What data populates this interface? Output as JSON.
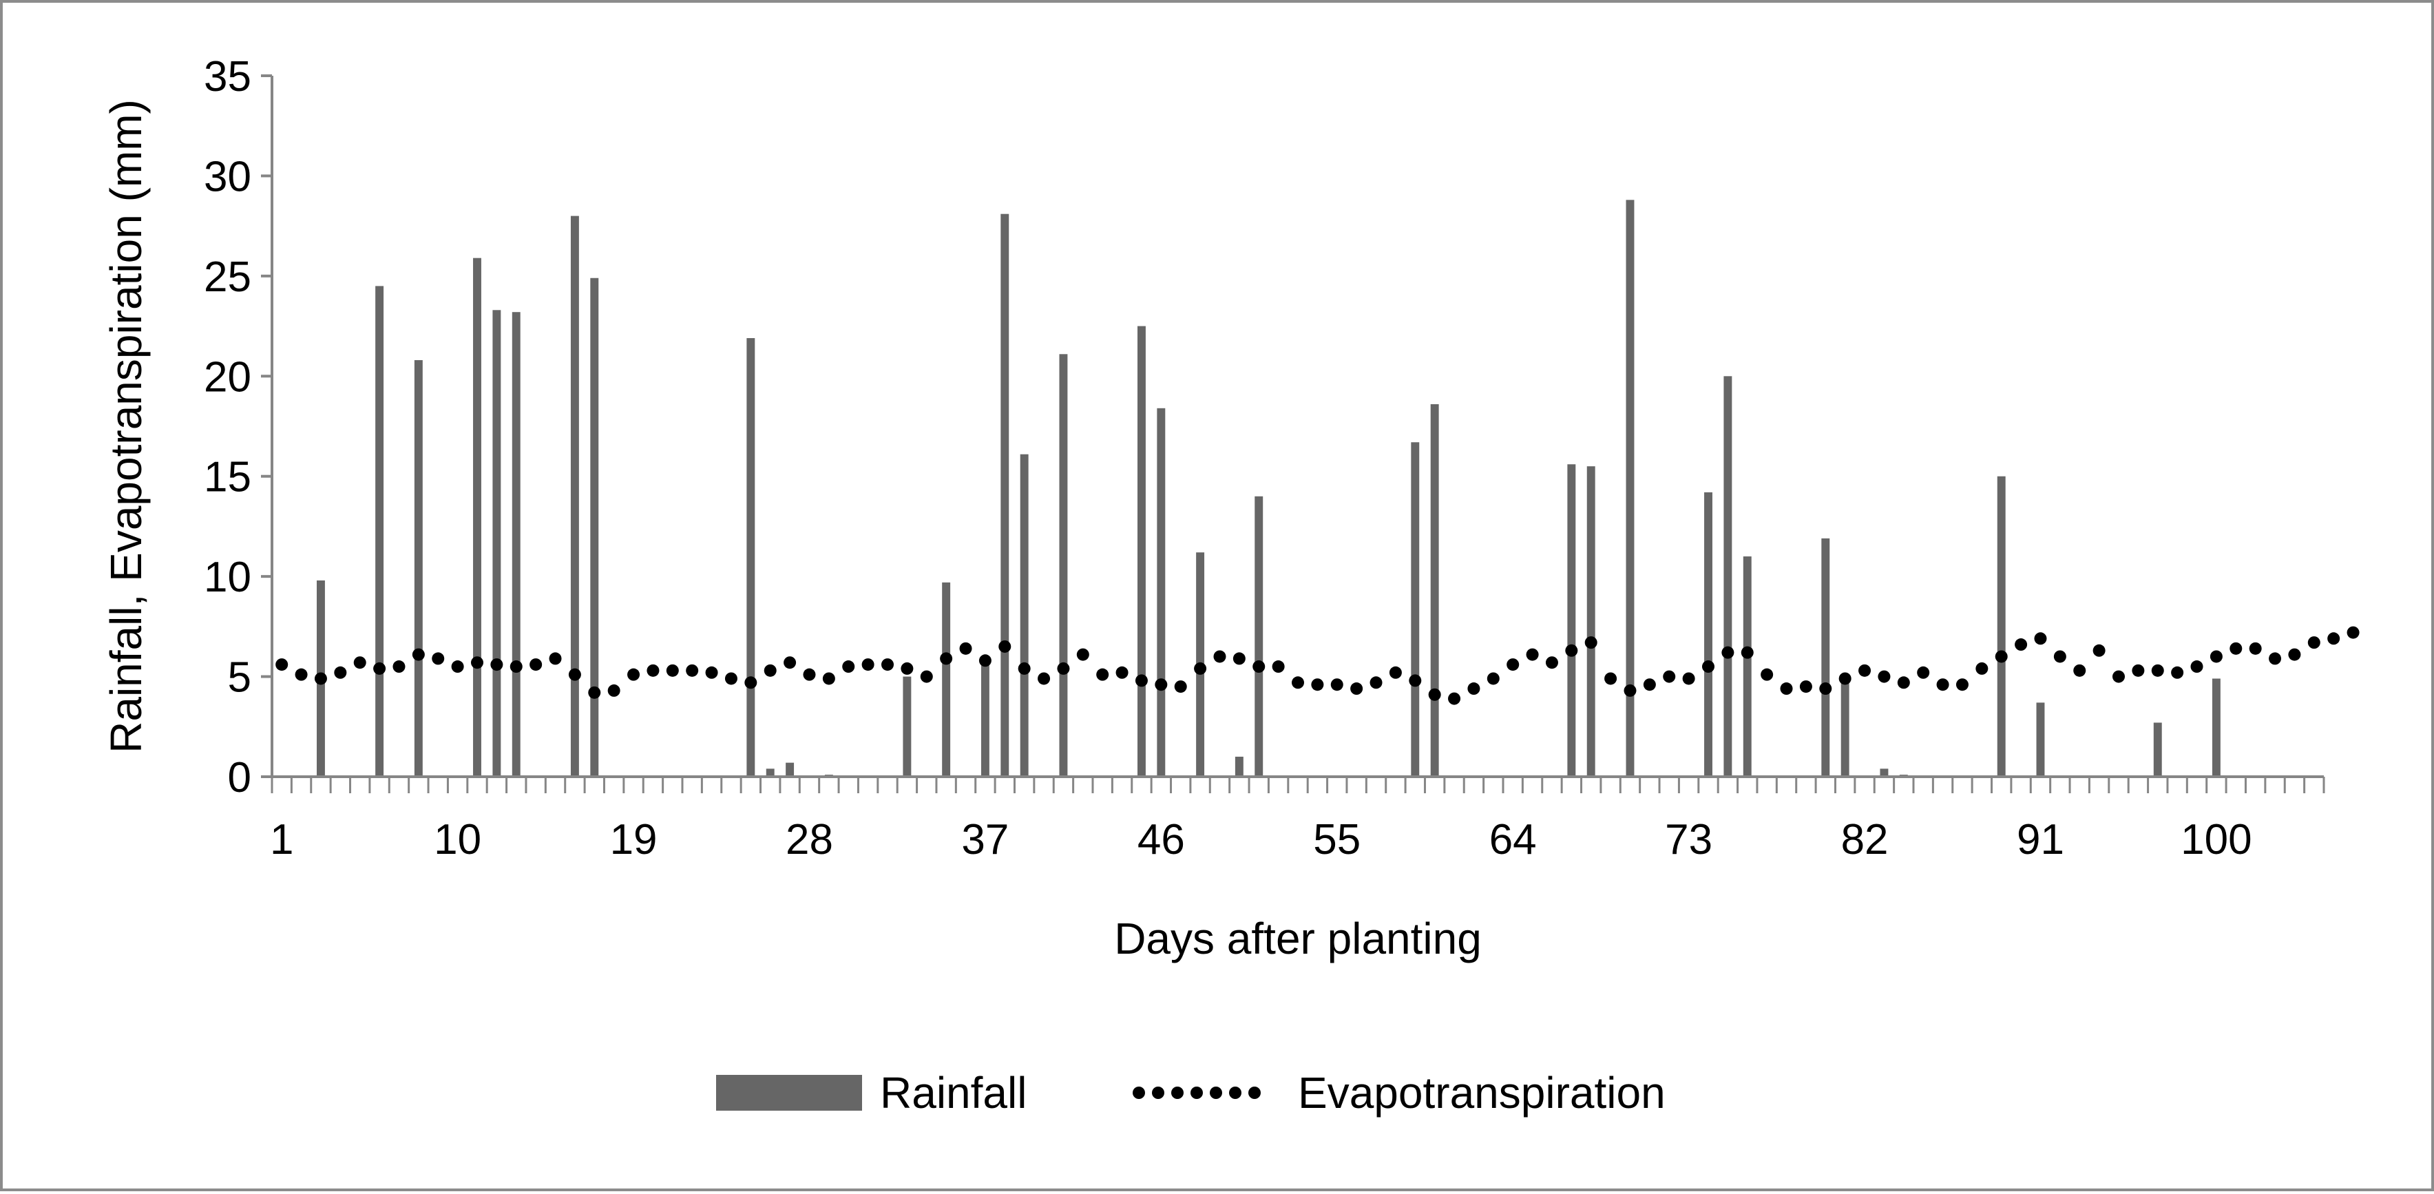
{
  "chart_data": {
    "type": "bar+line",
    "xlabel": "Days after planting",
    "ylabel": "Rainfall, Evapotranspiration (mm)",
    "ylim": [
      0,
      35
    ],
    "yticks": [
      0,
      5,
      10,
      15,
      20,
      25,
      30,
      35
    ],
    "xlim": [
      1,
      105
    ],
    "xtick_labels": [
      "1",
      "10",
      "19",
      "28",
      "37",
      "46",
      "55",
      "64",
      "73",
      "82",
      "91",
      "100"
    ],
    "legend_position": "bottom",
    "colors": {
      "rainfall": "#666666",
      "evapotranspiration": "#000000",
      "axis": "#868686",
      "border": "#8c8c8c"
    },
    "series": [
      {
        "name": "Rainfall",
        "kind": "bar",
        "points": [
          {
            "day": 3,
            "value": 9.8
          },
          {
            "day": 6,
            "value": 24.5
          },
          {
            "day": 8,
            "value": 20.8
          },
          {
            "day": 11,
            "value": 25.9
          },
          {
            "day": 12,
            "value": 23.3
          },
          {
            "day": 13,
            "value": 23.2
          },
          {
            "day": 16,
            "value": 28.0
          },
          {
            "day": 17,
            "value": 24.9
          },
          {
            "day": 25,
            "value": 21.9
          },
          {
            "day": 26,
            "value": 0.4
          },
          {
            "day": 27,
            "value": 0.7
          },
          {
            "day": 29,
            "value": 0.1
          },
          {
            "day": 33,
            "value": 5.0
          },
          {
            "day": 35,
            "value": 9.7
          },
          {
            "day": 37,
            "value": 5.8
          },
          {
            "day": 38,
            "value": 28.1
          },
          {
            "day": 39,
            "value": 16.1
          },
          {
            "day": 41,
            "value": 21.1
          },
          {
            "day": 45,
            "value": 22.5
          },
          {
            "day": 46,
            "value": 18.4
          },
          {
            "day": 48,
            "value": 11.2
          },
          {
            "day": 50,
            "value": 1.0
          },
          {
            "day": 51,
            "value": 14.0
          },
          {
            "day": 59,
            "value": 16.7
          },
          {
            "day": 60,
            "value": 18.6
          },
          {
            "day": 67,
            "value": 15.6
          },
          {
            "day": 68,
            "value": 15.5
          },
          {
            "day": 70,
            "value": 28.8
          },
          {
            "day": 74,
            "value": 14.2
          },
          {
            "day": 75,
            "value": 20.0
          },
          {
            "day": 76,
            "value": 11.0
          },
          {
            "day": 80,
            "value": 11.9
          },
          {
            "day": 81,
            "value": 5.1
          },
          {
            "day": 83,
            "value": 0.4
          },
          {
            "day": 84,
            "value": 0.1
          },
          {
            "day": 89,
            "value": 15.0
          },
          {
            "day": 91,
            "value": 3.7
          },
          {
            "day": 97,
            "value": 2.7
          },
          {
            "day": 100,
            "value": 4.9
          }
        ]
      },
      {
        "name": "Evapotranspiration",
        "kind": "line",
        "style": "dotted",
        "values": [
          5.6,
          5.1,
          4.9,
          5.2,
          5.7,
          5.4,
          5.5,
          6.1,
          5.9,
          5.5,
          5.7,
          5.6,
          5.5,
          5.6,
          5.9,
          5.1,
          4.2,
          4.3,
          5.1,
          5.3,
          5.3,
          5.3,
          5.2,
          4.9,
          4.7,
          5.3,
          5.7,
          5.1,
          4.9,
          5.5,
          5.6,
          5.6,
          5.4,
          5.0,
          5.9,
          6.4,
          5.8,
          6.5,
          5.4,
          4.9,
          5.4,
          6.1,
          5.1,
          5.2,
          4.8,
          4.6,
          4.5,
          5.4,
          6.0,
          5.9,
          5.5,
          5.5,
          4.7,
          4.6,
          4.6,
          4.4,
          4.7,
          5.2,
          4.8,
          4.1,
          3.9,
          4.4,
          4.9,
          5.6,
          6.1,
          5.7,
          6.3,
          6.7,
          4.9,
          4.3,
          4.6,
          5.0,
          4.9,
          5.5,
          6.2,
          6.2,
          5.1,
          4.4,
          4.5,
          4.4,
          4.9,
          5.3,
          5.0,
          4.7,
          5.2,
          4.6,
          4.6,
          5.4,
          6.0,
          6.6,
          6.9,
          6.0,
          5.3,
          6.3,
          5.0,
          5.3,
          5.3,
          5.2,
          5.5,
          6.0,
          6.4,
          6.4,
          5.9,
          6.1,
          6.7,
          6.9,
          7.2
        ]
      }
    ]
  }
}
